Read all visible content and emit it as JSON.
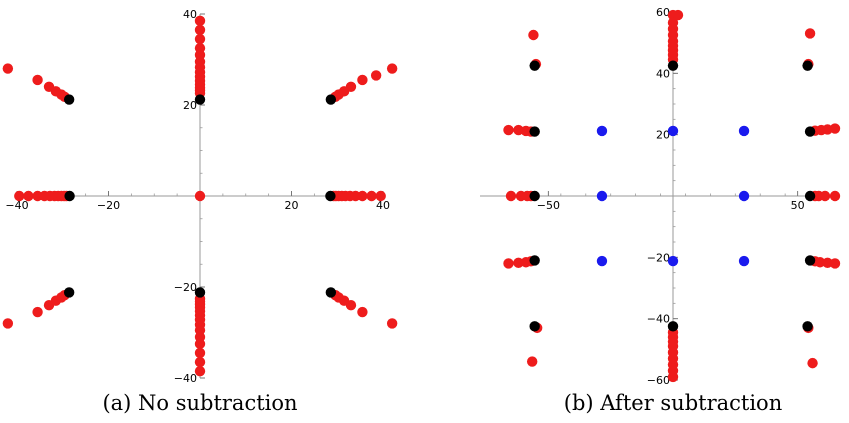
{
  "chart_data": [
    {
      "type": "scatter",
      "caption": "(a) No subtraction",
      "xlim": [
        -40,
        40
      ],
      "ylim": [
        -40,
        40
      ],
      "xticks": [
        -40,
        -20,
        20,
        40
      ],
      "yticks": [
        -40,
        -20,
        20,
        40
      ],
      "xtick_labels": [
        "−40",
        "−20",
        "20",
        "40"
      ],
      "ytick_labels": [
        "−40",
        "−20",
        "20",
        "40"
      ],
      "colors": {
        "red": "#ee1c1c",
        "black": "#000000",
        "blue": "#1a1aee"
      },
      "series": [
        {
          "color": "red",
          "points": [
            [
              0,
              38.5
            ],
            [
              0,
              36.5
            ],
            [
              0,
              34.5
            ],
            [
              0,
              32.5
            ],
            [
              0,
              31
            ],
            [
              0,
              29.5
            ],
            [
              0,
              28.3
            ],
            [
              0,
              27.2
            ],
            [
              0,
              26.2
            ],
            [
              0,
              25.3
            ],
            [
              0,
              24.5
            ],
            [
              0,
              23.8
            ],
            [
              0,
              23.2
            ],
            [
              0,
              22.6
            ],
            [
              0,
              -38.5
            ],
            [
              0,
              -36.5
            ],
            [
              0,
              -34.5
            ],
            [
              0,
              -32.5
            ],
            [
              0,
              -31
            ],
            [
              0,
              -29.5
            ],
            [
              0,
              -28.3
            ],
            [
              0,
              -27.2
            ],
            [
              0,
              -26.2
            ],
            [
              0,
              -25.3
            ],
            [
              0,
              -24.5
            ],
            [
              0,
              -23.8
            ],
            [
              0,
              -23.2
            ],
            [
              0,
              -22.6
            ],
            [
              -39.5,
              0
            ],
            [
              -37.5,
              0
            ],
            [
              -35.5,
              0
            ],
            [
              -34,
              0
            ],
            [
              -32.8,
              0
            ],
            [
              -31.8,
              0
            ],
            [
              -31,
              0
            ],
            [
              -30.3,
              0
            ],
            [
              -29.7,
              0
            ],
            [
              -29.2,
              0
            ],
            [
              39.5,
              0
            ],
            [
              37.5,
              0
            ],
            [
              35.5,
              0
            ],
            [
              34,
              0
            ],
            [
              32.8,
              0
            ],
            [
              31.8,
              0
            ],
            [
              31,
              0
            ],
            [
              30.3,
              0
            ],
            [
              29.7,
              0
            ],
            [
              29.2,
              0
            ],
            [
              0,
              0
            ],
            [
              -42,
              28
            ],
            [
              -35.5,
              25.5
            ],
            [
              -33,
              24
            ],
            [
              -31.5,
              23
            ],
            [
              -30.3,
              22.3
            ],
            [
              -29.6,
              21.8
            ],
            [
              42,
              28
            ],
            [
              38.5,
              26.5
            ],
            [
              35.5,
              25.5
            ],
            [
              33,
              24
            ],
            [
              31.5,
              23
            ],
            [
              30.3,
              22.3
            ],
            [
              29.6,
              21.8
            ],
            [
              -42,
              -28
            ],
            [
              -35.5,
              -25.5
            ],
            [
              -33,
              -24
            ],
            [
              -31.5,
              -23
            ],
            [
              -30.3,
              -22.3
            ],
            [
              -29.6,
              -21.8
            ],
            [
              42,
              -28
            ],
            [
              35.5,
              -25.5
            ],
            [
              33,
              -24
            ],
            [
              31.5,
              -23
            ],
            [
              30.3,
              -22.3
            ],
            [
              29.6,
              -21.8
            ]
          ]
        },
        {
          "color": "black",
          "points": [
            [
              0,
              21.2
            ],
            [
              0,
              -21.2
            ],
            [
              -28.5,
              0
            ],
            [
              28.5,
              0
            ],
            [
              -28.6,
              21.2
            ],
            [
              28.6,
              21.2
            ],
            [
              -28.6,
              -21.2
            ],
            [
              28.6,
              -21.2
            ]
          ]
        }
      ]
    },
    {
      "type": "scatter",
      "caption": "(b) After subtraction",
      "xlim": [
        -65,
        65
      ],
      "ylim": [
        -60,
        60
      ],
      "xticks": [
        -50,
        50
      ],
      "yticks": [
        -60,
        -40,
        -20,
        20,
        40,
        60
      ],
      "xtick_labels": [
        "−50",
        "50"
      ],
      "ytick_labels": [
        "−60",
        "−40",
        "−20",
        "20",
        "40",
        "60"
      ],
      "colors": {
        "red": "#ee1c1c",
        "black": "#000000",
        "blue": "#1a1aee"
      },
      "series": [
        {
          "color": "red",
          "points": [
            [
              0,
              59
            ],
            [
              2,
              59
            ],
            [
              0,
              56.5
            ],
            [
              0,
              54.5
            ],
            [
              0,
              52.5
            ],
            [
              0,
              50.5
            ],
            [
              0,
              49
            ],
            [
              0,
              47.5
            ],
            [
              0,
              46
            ],
            [
              0,
              44.5
            ],
            [
              0,
              -59
            ],
            [
              0,
              -57
            ],
            [
              0,
              -55
            ],
            [
              0,
              -53
            ],
            [
              0,
              -51
            ],
            [
              0,
              -49
            ],
            [
              0,
              -47.5
            ],
            [
              0,
              -46
            ],
            [
              0,
              -44.5
            ],
            [
              -56,
              52.5
            ],
            [
              55,
              53
            ],
            [
              -56.5,
              -54
            ],
            [
              56,
              -54.5
            ],
            [
              -55,
              43
            ],
            [
              -54.5,
              -43
            ],
            [
              54.3,
              43
            ],
            [
              54.3,
              -43
            ],
            [
              -66,
              21.5
            ],
            [
              -62,
              21.5
            ],
            [
              -59,
              21.2
            ],
            [
              -57,
              21
            ],
            [
              -65,
              0
            ],
            [
              -61,
              0
            ],
            [
              -58.5,
              0
            ],
            [
              -57,
              0
            ],
            [
              -66,
              -22
            ],
            [
              -62,
              -21.8
            ],
            [
              -59,
              -21.6
            ],
            [
              -57,
              -21.3
            ],
            [
              57,
              21.3
            ],
            [
              59.5,
              21.5
            ],
            [
              62,
              21.7
            ],
            [
              65,
              22
            ],
            [
              57,
              0
            ],
            [
              58.5,
              0
            ],
            [
              61,
              0
            ],
            [
              65,
              0
            ],
            [
              57,
              -21.3
            ],
            [
              59,
              -21.6
            ],
            [
              62,
              -21.8
            ],
            [
              65,
              -22
            ]
          ]
        },
        {
          "color": "black",
          "points": [
            [
              0,
              42.5
            ],
            [
              0,
              -42.5
            ],
            [
              -55.5,
              42.5
            ],
            [
              -55.5,
              -42.5
            ],
            [
              54,
              42.5
            ],
            [
              54,
              -42.5
            ],
            [
              -55.5,
              21
            ],
            [
              -55.5,
              0
            ],
            [
              -55.5,
              -21
            ],
            [
              55,
              21
            ],
            [
              55,
              0
            ],
            [
              55,
              -21
            ]
          ]
        },
        {
          "color": "blue",
          "points": [
            [
              -28.5,
              21.2
            ],
            [
              0,
              21.2
            ],
            [
              28.5,
              21.2
            ],
            [
              -28.5,
              0
            ],
            [
              28.5,
              0
            ],
            [
              -28.5,
              -21.2
            ],
            [
              0,
              -21.2
            ],
            [
              28.5,
              -21.2
            ]
          ]
        }
      ]
    }
  ]
}
